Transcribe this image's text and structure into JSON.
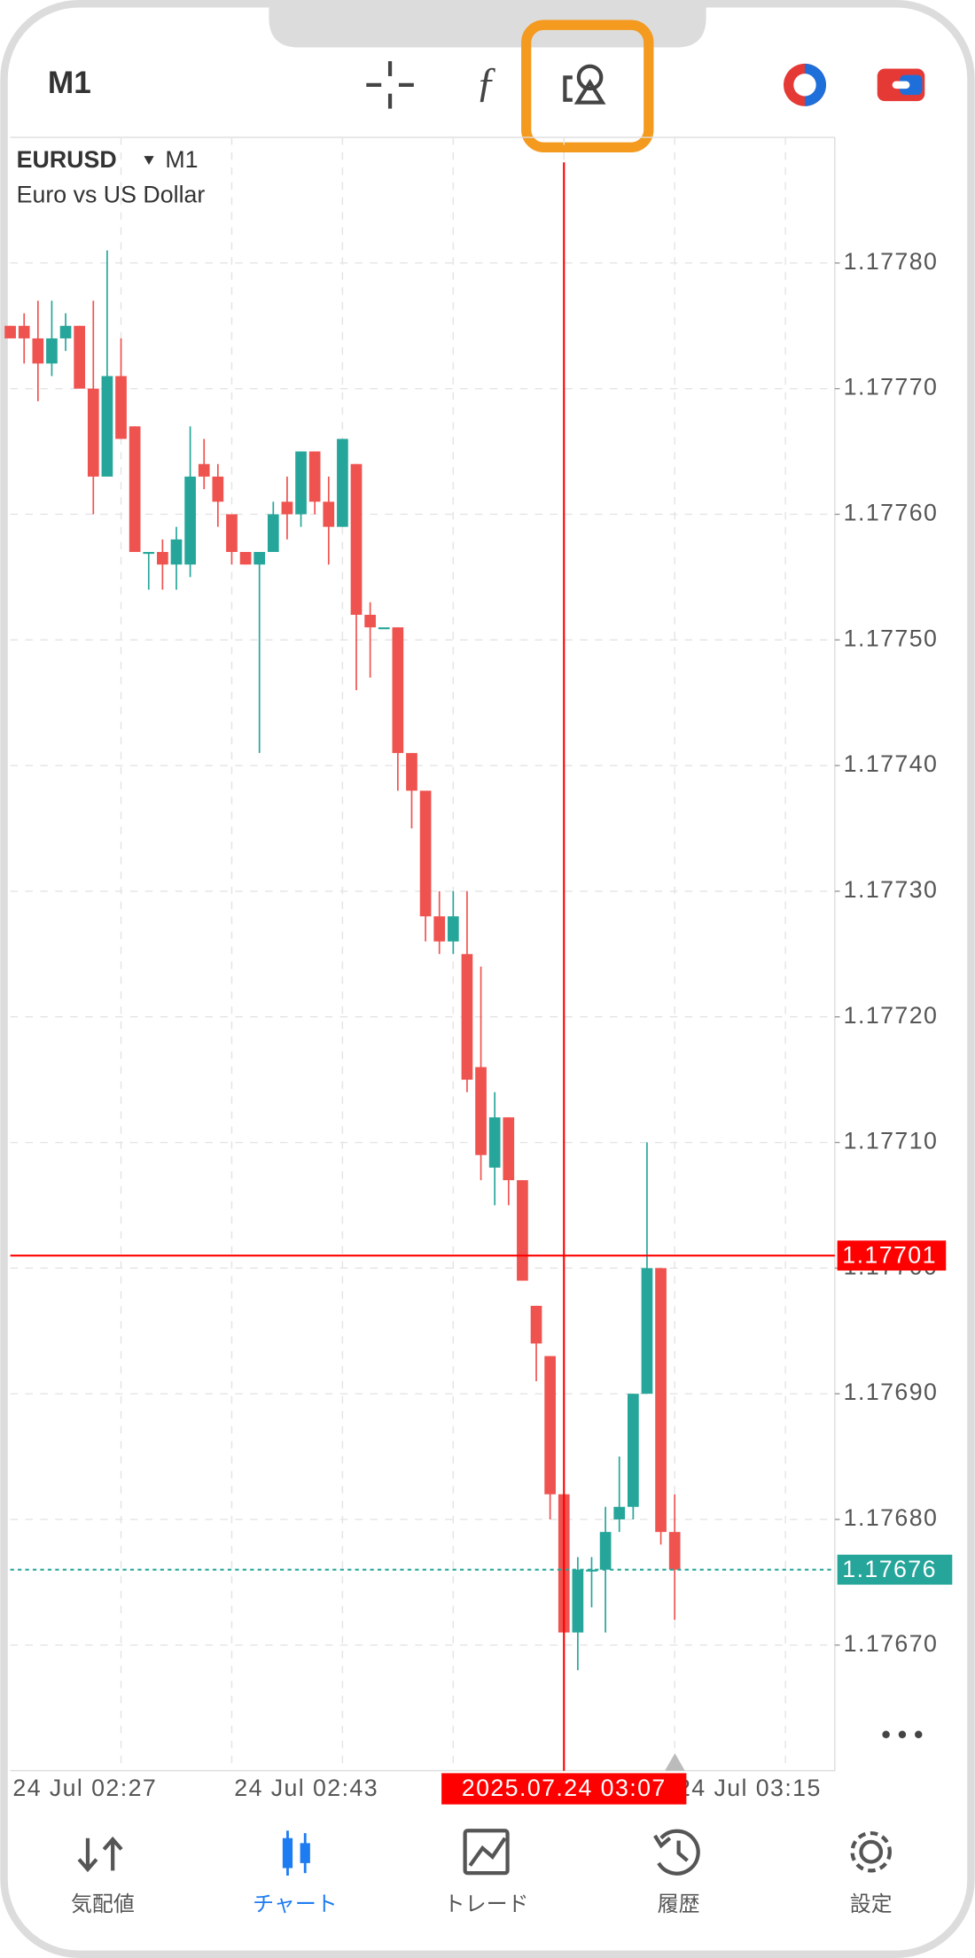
{
  "toolbar": {
    "timeframe": "M1"
  },
  "chart_data": {
    "type": "candlestick",
    "symbol": "EURUSD",
    "timeframe": "M1",
    "description": "Euro vs US Dollar",
    "categories": [
      "24 Jul 02:27",
      null,
      null,
      null,
      null,
      null,
      null,
      null,
      null,
      null,
      null,
      null,
      null,
      null,
      null,
      null,
      "24 Jul 02:43",
      null,
      null,
      null,
      null,
      null,
      null,
      null,
      null,
      null,
      null,
      null,
      null,
      null,
      null,
      null,
      null,
      null,
      null,
      null,
      null,
      null,
      null,
      null,
      null,
      null,
      null,
      null,
      null,
      null,
      null,
      null,
      "24 Jul 03:15"
    ],
    "open": [
      1.17775,
      1.17775,
      1.17774,
      1.17772,
      1.17774,
      1.17775,
      1.1777,
      1.17763,
      1.17771,
      1.17767,
      1.17757,
      1.17757,
      1.17756,
      1.17756,
      1.17764,
      1.17763,
      1.1776,
      1.17757,
      1.17756,
      1.17757,
      1.17761,
      1.1776,
      1.17765,
      1.17761,
      1.17759,
      1.17764,
      1.17752,
      1.17751,
      1.17751,
      1.17741,
      1.17738,
      1.17728,
      1.17726,
      1.17725,
      1.17716,
      1.17708,
      1.17712,
      1.17707,
      1.17697,
      1.17693,
      1.17682,
      1.17671,
      1.17676,
      1.17676,
      1.1768,
      1.17681,
      1.1769,
      1.177,
      1.17679
    ],
    "high": [
      1.17775,
      1.17776,
      1.17777,
      1.17777,
      1.17776,
      1.17775,
      1.17777,
      1.17781,
      1.17774,
      1.17767,
      1.17757,
      1.17758,
      1.17759,
      1.17767,
      1.17766,
      1.17764,
      1.1776,
      1.17757,
      1.17757,
      1.17761,
      1.17763,
      1.17765,
      1.17765,
      1.17763,
      1.17766,
      1.17764,
      1.17753,
      1.17751,
      1.17751,
      1.17741,
      1.17738,
      1.1773,
      1.1773,
      1.1773,
      1.17724,
      1.17714,
      1.17712,
      1.17707,
      1.17697,
      1.17693,
      1.17682,
      1.17677,
      1.17677,
      1.17681,
      1.17685,
      1.1769,
      1.1771,
      1.177,
      1.17682
    ],
    "low": [
      1.17774,
      1.17772,
      1.17769,
      1.17771,
      1.17773,
      1.1777,
      1.1776,
      1.17763,
      1.17766,
      1.17757,
      1.17754,
      1.17754,
      1.17754,
      1.17755,
      1.17762,
      1.17759,
      1.17756,
      1.17756,
      1.17741,
      1.17757,
      1.17758,
      1.17759,
      1.1776,
      1.17756,
      1.17759,
      1.17746,
      1.17747,
      1.17751,
      1.17738,
      1.17735,
      1.17726,
      1.17725,
      1.17725,
      1.17714,
      1.17707,
      1.17705,
      1.17705,
      1.17699,
      1.17691,
      1.1768,
      1.17671,
      1.17668,
      1.17673,
      1.17671,
      1.17679,
      1.1768,
      1.1769,
      1.17678,
      1.17672
    ],
    "close": [
      1.17774,
      1.17774,
      1.17772,
      1.17774,
      1.17775,
      1.1777,
      1.17763,
      1.17771,
      1.17766,
      1.17757,
      1.17757,
      1.17756,
      1.17758,
      1.17763,
      1.17763,
      1.17761,
      1.17757,
      1.17756,
      1.17757,
      1.1776,
      1.1776,
      1.17765,
      1.17761,
      1.17759,
      1.17766,
      1.17752,
      1.17751,
      1.17751,
      1.17741,
      1.17738,
      1.17728,
      1.17726,
      1.17728,
      1.17715,
      1.17709,
      1.17712,
      1.17707,
      1.17699,
      1.17694,
      1.17682,
      1.17671,
      1.17676,
      1.17676,
      1.17679,
      1.17681,
      1.1769,
      1.177,
      1.17679,
      1.17676
    ],
    "up_color": "#26a69a",
    "down_color": "#ef5350",
    "ylim": [
      1.1766,
      1.1779
    ],
    "yticks": [
      {
        "value": 1.1767,
        "label": "1.17670"
      },
      {
        "value": 1.1768,
        "label": "1.17680"
      },
      {
        "value": 1.1769,
        "label": "1.17690"
      },
      {
        "value": 1.177,
        "label": "1.17700"
      },
      {
        "value": 1.1771,
        "label": "1.17710"
      },
      {
        "value": 1.1772,
        "label": "1.17720"
      },
      {
        "value": 1.1773,
        "label": "1.17730"
      },
      {
        "value": 1.1774,
        "label": "1.17740"
      },
      {
        "value": 1.1775,
        "label": "1.17750"
      },
      {
        "value": 1.1776,
        "label": "1.17760"
      },
      {
        "value": 1.1777,
        "label": "1.17770"
      },
      {
        "value": 1.1778,
        "label": "1.17780"
      }
    ],
    "grid": true,
    "crosshair": {
      "price": 1.17701,
      "index": 40,
      "time": "2025.07.24 03:07",
      "color": "#ff0000"
    },
    "last_price": 1.17676
  },
  "tabs": [
    "気配値",
    "チャート",
    "トレード",
    "履歴",
    "設定"
  ]
}
